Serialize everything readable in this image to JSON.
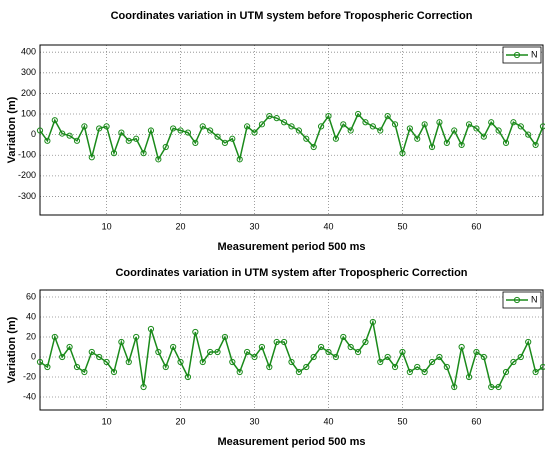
{
  "chart_data": [
    {
      "type": "line",
      "title": "Coordinates variation in UTM system before Tropospheric Correction",
      "x_label": "Measurement period 500 ms",
      "y_label": "Variation (m)",
      "x": [
        1,
        2,
        3,
        4,
        5,
        6,
        7,
        8,
        9,
        10,
        11,
        12,
        13,
        14,
        15,
        16,
        17,
        18,
        19,
        20,
        21,
        22,
        23,
        24,
        25,
        26,
        27,
        28,
        29,
        30,
        31,
        32,
        33,
        34,
        35,
        36,
        37,
        38,
        39,
        40,
        41,
        42,
        43,
        44,
        45,
        46,
        47,
        48,
        49,
        50,
        51,
        52,
        53,
        54,
        55,
        56,
        57,
        58,
        59,
        60,
        61,
        62,
        63,
        64,
        65,
        66,
        67,
        68,
        69
      ],
      "series": [
        {
          "name": "N",
          "color": "#1a8a1a",
          "values": [
            20,
            -30,
            70,
            5,
            -5,
            -30,
            40,
            -110,
            30,
            40,
            -90,
            10,
            -30,
            -20,
            -90,
            20,
            -120,
            -60,
            30,
            20,
            10,
            -40,
            40,
            20,
            -10,
            -40,
            -20,
            -120,
            40,
            10,
            50,
            90,
            80,
            60,
            40,
            20,
            -20,
            -60,
            40,
            90,
            -20,
            50,
            20,
            100,
            60,
            40,
            20,
            90,
            50,
            -90,
            30,
            -20,
            50,
            -60,
            60,
            -40,
            20,
            -50,
            50,
            30,
            -10,
            60,
            20,
            -40,
            60,
            40,
            0,
            -50,
            40
          ]
        }
      ],
      "xlim": [
        1,
        69
      ],
      "xticks": [
        10,
        20,
        30,
        40,
        50,
        60
      ],
      "ylim": [
        -390,
        435
      ],
      "yticks": [
        400,
        300,
        200,
        100,
        0,
        -100,
        -200,
        -300
      ],
      "grid": true,
      "legend": "upper right"
    },
    {
      "type": "line",
      "title": "Coordinates variation in UTM system   after   Tropospheric Correction",
      "x_label": "Measurement period 500 ms",
      "y_label": "Variation (m)",
      "x": [
        1,
        2,
        3,
        4,
        5,
        6,
        7,
        8,
        9,
        10,
        11,
        12,
        13,
        14,
        15,
        16,
        17,
        18,
        19,
        20,
        21,
        22,
        23,
        24,
        25,
        26,
        27,
        28,
        29,
        30,
        31,
        32,
        33,
        34,
        35,
        36,
        37,
        38,
        39,
        40,
        41,
        42,
        43,
        44,
        45,
        46,
        47,
        48,
        49,
        50,
        51,
        52,
        53,
        54,
        55,
        56,
        57,
        58,
        59,
        60,
        61,
        62,
        63,
        64,
        65,
        66,
        67,
        68,
        69
      ],
      "series": [
        {
          "name": "N",
          "color": "#1a8a1a",
          "values": [
            -5,
            -10,
            20,
            0,
            10,
            -10,
            -15,
            5,
            0,
            -5,
            -15,
            15,
            -5,
            20,
            -30,
            28,
            5,
            -10,
            10,
            -5,
            -20,
            25,
            -5,
            5,
            5,
            20,
            -5,
            -15,
            5,
            0,
            10,
            -10,
            15,
            15,
            -5,
            -15,
            -10,
            0,
            10,
            5,
            0,
            20,
            10,
            5,
            15,
            35,
            -5,
            0,
            -10,
            5,
            -15,
            -10,
            -15,
            -5,
            0,
            -10,
            -30,
            10,
            -20,
            5,
            0,
            -30,
            -30,
            -15,
            -5,
            0,
            15,
            -15,
            -10
          ]
        }
      ],
      "xlim": [
        1,
        69
      ],
      "xticks": [
        10,
        20,
        30,
        40,
        50,
        60
      ],
      "ylim": [
        -53,
        67
      ],
      "yticks": [
        60,
        40,
        20,
        0,
        -20,
        -40
      ],
      "grid": true,
      "legend": "upper right"
    }
  ]
}
